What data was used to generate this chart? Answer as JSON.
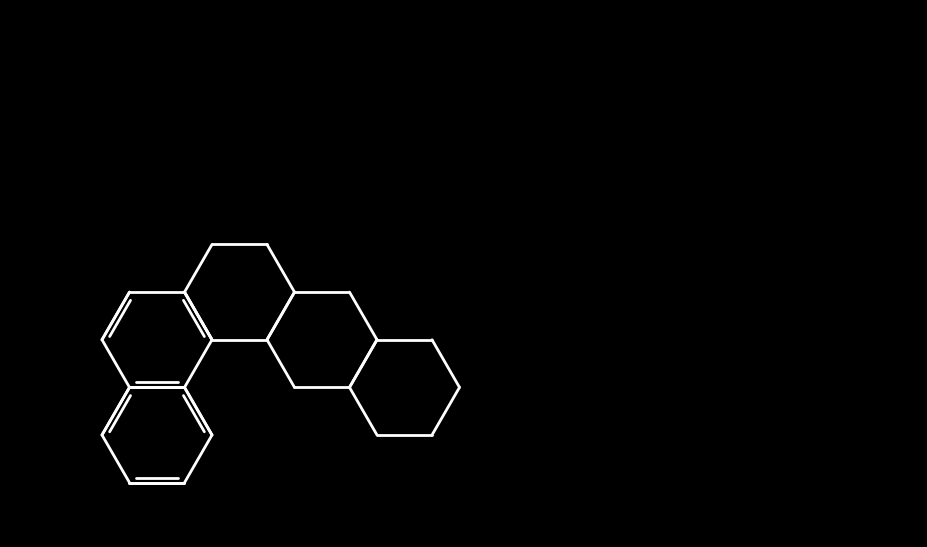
{
  "bg": "#000000",
  "white": "#ffffff",
  "blue_n": "#2222ee",
  "red_o": "#cc0000",
  "lw": 2.0,
  "lw_text": 14,
  "figsize": [
    9.27,
    5.47
  ],
  "dpi": 100
}
